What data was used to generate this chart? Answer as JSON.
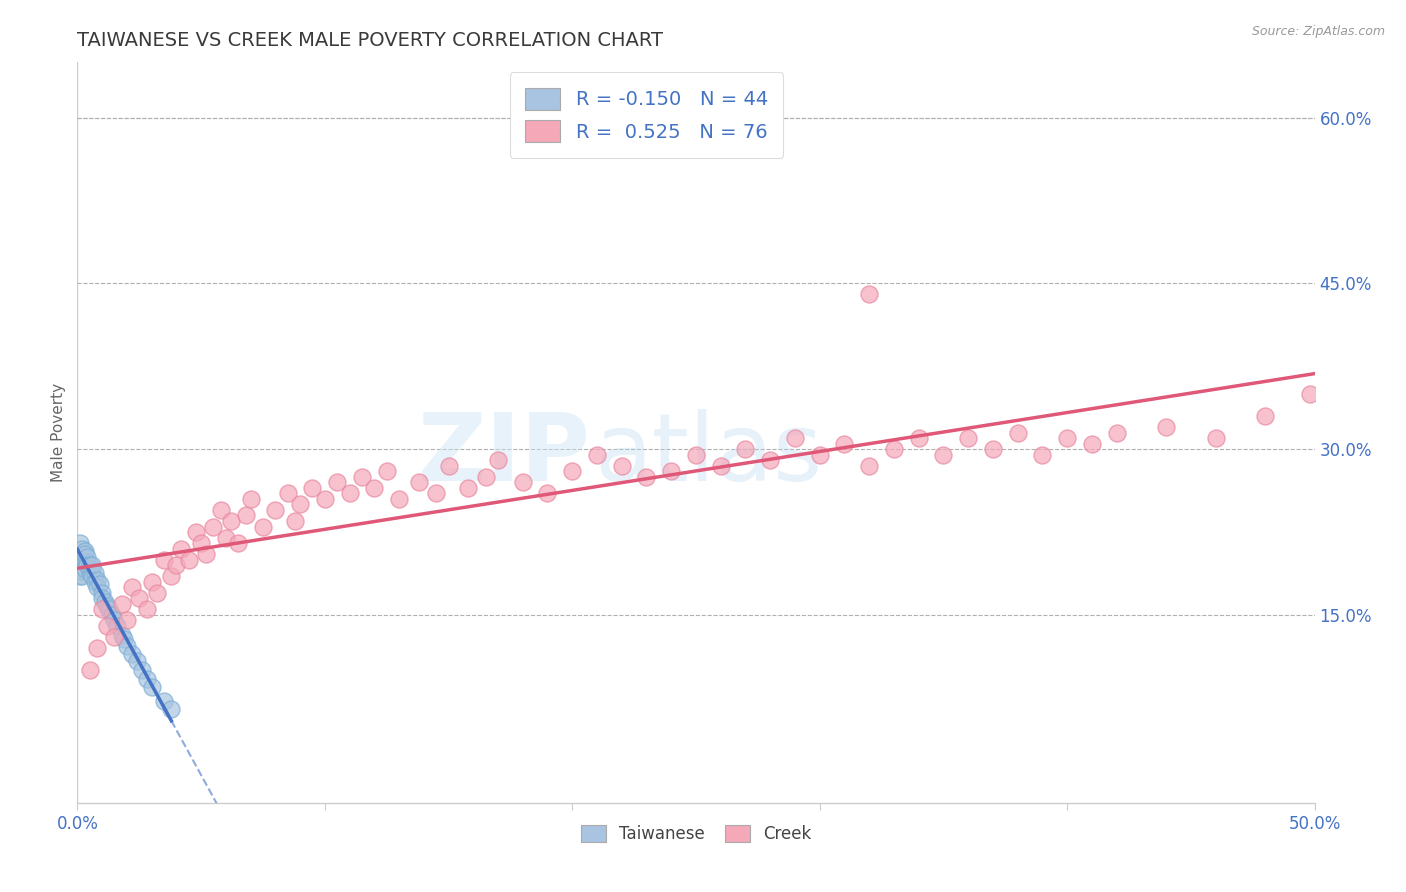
{
  "title": "TAIWANESE VS CREEK MALE POVERTY CORRELATION CHART",
  "source_text": "Source: ZipAtlas.com",
  "ylabel": "Male Poverty",
  "xlim": [
    0.0,
    0.5
  ],
  "ylim": [
    -0.02,
    0.65
  ],
  "xticks": [
    0.0,
    0.1,
    0.2,
    0.3,
    0.4,
    0.5
  ],
  "xticklabels_ends": [
    "0.0%",
    "50.0%"
  ],
  "right_yticks": [
    0.15,
    0.3,
    0.45,
    0.6
  ],
  "right_yticklabels": [
    "15.0%",
    "30.0%",
    "45.0%",
    "60.0%"
  ],
  "hlines": [
    0.15,
    0.3,
    0.45,
    0.6
  ],
  "title_color": "#3a3a3a",
  "title_fontsize": 14,
  "background_color": "#ffffff",
  "watermark_text1": "ZIP",
  "watermark_text2": "atlas",
  "legend_R1": "-0.150",
  "legend_N1": "44",
  "legend_R2": " 0.525",
  "legend_N2": "76",
  "blue_color": "#a8c4e0",
  "blue_edge_color": "#7aafd4",
  "blue_line_color": "#4472c4",
  "pink_color": "#f4a8b8",
  "pink_edge_color": "#e888a0",
  "pink_line_color": "#e05878",
  "legend_label1": "Taiwanese",
  "legend_label2": "Creek",
  "tw_x": [
    0.001,
    0.001,
    0.001,
    0.002,
    0.002,
    0.002,
    0.002,
    0.002,
    0.003,
    0.003,
    0.003,
    0.003,
    0.004,
    0.004,
    0.004,
    0.005,
    0.005,
    0.005,
    0.006,
    0.006,
    0.006,
    0.007,
    0.007,
    0.008,
    0.008,
    0.009,
    0.01,
    0.01,
    0.011,
    0.012,
    0.013,
    0.014,
    0.015,
    0.016,
    0.018,
    0.019,
    0.02,
    0.022,
    0.024,
    0.026,
    0.028,
    0.03,
    0.035,
    0.038
  ],
  "tw_y": [
    0.2,
    0.215,
    0.185,
    0.195,
    0.205,
    0.19,
    0.21,
    0.185,
    0.198,
    0.208,
    0.192,
    0.205,
    0.198,
    0.202,
    0.195,
    0.188,
    0.195,
    0.192,
    0.19,
    0.185,
    0.195,
    0.188,
    0.18,
    0.182,
    0.175,
    0.178,
    0.17,
    0.165,
    0.162,
    0.158,
    0.155,
    0.15,
    0.145,
    0.14,
    0.132,
    0.128,
    0.122,
    0.115,
    0.108,
    0.1,
    0.092,
    0.085,
    0.072,
    0.065
  ],
  "cr_x": [
    0.005,
    0.008,
    0.01,
    0.012,
    0.015,
    0.018,
    0.02,
    0.022,
    0.025,
    0.028,
    0.03,
    0.032,
    0.035,
    0.038,
    0.04,
    0.042,
    0.045,
    0.048,
    0.05,
    0.052,
    0.055,
    0.058,
    0.06,
    0.062,
    0.065,
    0.068,
    0.07,
    0.075,
    0.08,
    0.085,
    0.088,
    0.09,
    0.095,
    0.1,
    0.105,
    0.11,
    0.115,
    0.12,
    0.125,
    0.13,
    0.138,
    0.145,
    0.15,
    0.158,
    0.165,
    0.17,
    0.18,
    0.19,
    0.2,
    0.21,
    0.22,
    0.23,
    0.24,
    0.25,
    0.26,
    0.27,
    0.28,
    0.29,
    0.3,
    0.31,
    0.32,
    0.33,
    0.34,
    0.35,
    0.36,
    0.37,
    0.38,
    0.39,
    0.4,
    0.41,
    0.32,
    0.42,
    0.44,
    0.46,
    0.48,
    0.498
  ],
  "cr_y": [
    0.1,
    0.12,
    0.155,
    0.14,
    0.13,
    0.16,
    0.145,
    0.175,
    0.165,
    0.155,
    0.18,
    0.17,
    0.2,
    0.185,
    0.195,
    0.21,
    0.2,
    0.225,
    0.215,
    0.205,
    0.23,
    0.245,
    0.22,
    0.235,
    0.215,
    0.24,
    0.255,
    0.23,
    0.245,
    0.26,
    0.235,
    0.25,
    0.265,
    0.255,
    0.27,
    0.26,
    0.275,
    0.265,
    0.28,
    0.255,
    0.27,
    0.26,
    0.285,
    0.265,
    0.275,
    0.29,
    0.27,
    0.26,
    0.28,
    0.295,
    0.285,
    0.275,
    0.28,
    0.295,
    0.285,
    0.3,
    0.29,
    0.31,
    0.295,
    0.305,
    0.285,
    0.3,
    0.31,
    0.295,
    0.31,
    0.3,
    0.315,
    0.295,
    0.31,
    0.305,
    0.44,
    0.315,
    0.32,
    0.31,
    0.33,
    0.35
  ]
}
